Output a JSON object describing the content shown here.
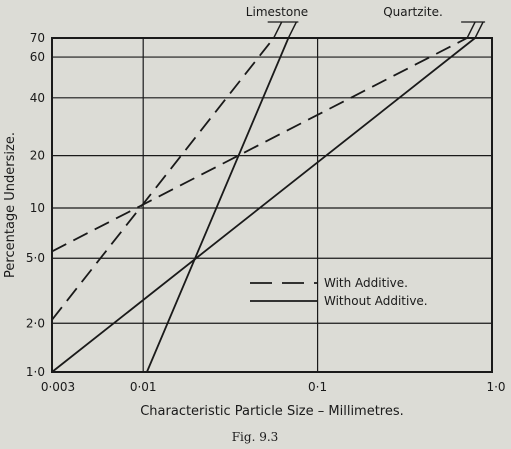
{
  "figure_caption": "Fig. 9.3",
  "chart_data": {
    "type": "line",
    "title": "",
    "xlabel": "Characteristic Particle Size – Millimetres.",
    "ylabel": "Percentage Undersize.",
    "x_scale": "log",
    "y_scale": "rosin-rammler",
    "xlim": [
      0.003,
      1.0
    ],
    "ylim": [
      1.0,
      70
    ],
    "grid": true,
    "x_ticks": [
      {
        "value": 0.003,
        "label": "0·003"
      },
      {
        "value": 0.01,
        "label": "0·01"
      },
      {
        "value": 0.1,
        "label": "0·1"
      },
      {
        "value": 1.0,
        "label": "1·0"
      }
    ],
    "y_ticks": [
      {
        "value": 1.0,
        "label": "1·0"
      },
      {
        "value": 2.0,
        "label": "2·0"
      },
      {
        "value": 5.0,
        "label": "5·0"
      },
      {
        "value": 10,
        "label": "10"
      },
      {
        "value": 20,
        "label": "20"
      },
      {
        "value": 40,
        "label": "40"
      },
      {
        "value": 60,
        "label": "60"
      },
      {
        "value": 70,
        "label": "70"
      }
    ],
    "material_labels": [
      "Limestone",
      "Quartzite."
    ],
    "legend": {
      "position": "bottom-right",
      "entries": [
        {
          "label": "With Additive.",
          "style": "dashed"
        },
        {
          "label": "Without Additive.",
          "style": "solid"
        }
      ]
    },
    "series": [
      {
        "material": "Limestone",
        "condition": "With Additive.",
        "style": "dashed",
        "x": [
          0.003,
          0.056
        ],
        "y": [
          2.1,
          70
        ]
      },
      {
        "material": "Limestone",
        "condition": "Without Additive.",
        "style": "solid",
        "x": [
          0.0105,
          0.068
        ],
        "y": [
          1.0,
          70
        ]
      },
      {
        "material": "Quartzite.",
        "condition": "With Additive.",
        "style": "dashed",
        "x": [
          0.003,
          0.72
        ],
        "y": [
          5.5,
          70
        ]
      },
      {
        "material": "Quartzite.",
        "condition": "Without Additive.",
        "style": "solid",
        "x": [
          0.003,
          0.8
        ],
        "y": [
          1.0,
          70
        ]
      }
    ]
  }
}
